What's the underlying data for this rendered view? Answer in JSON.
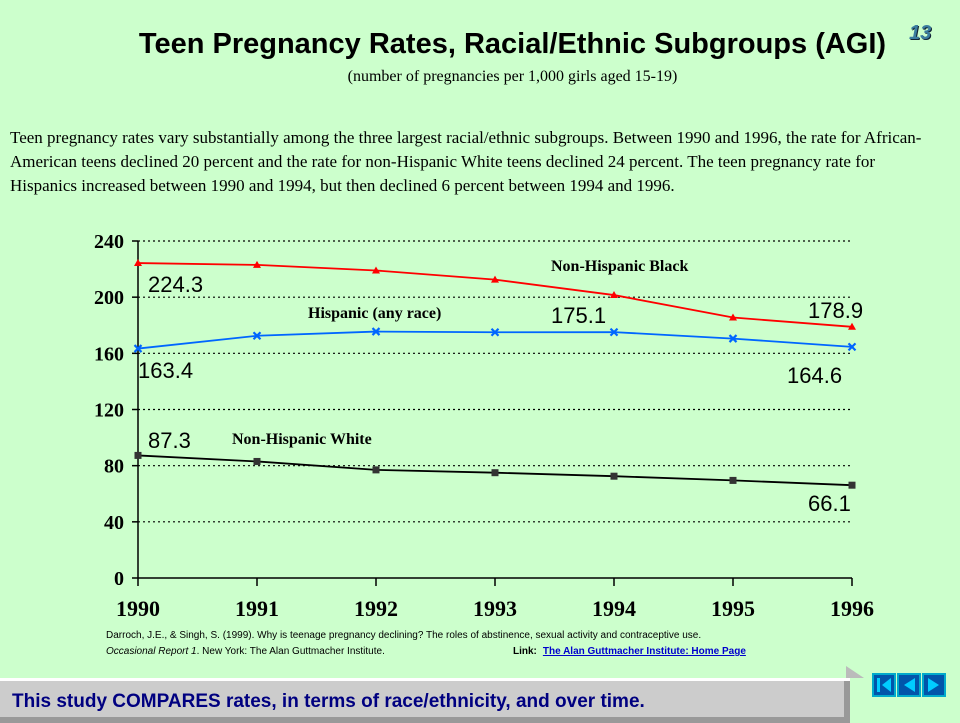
{
  "slide_number": "13",
  "title": "Teen Pregnancy Rates, Racial/Ethnic Subgroups (AGI)",
  "subtitle": "(number of pregnancies per 1,000 girls aged 15-19)",
  "paragraph": "Teen pregnancy rates vary substantially among the three largest racial/ethnic subgroups.  Between 1990 and 1996, the rate for African-American  teens declined 20 percent and the rate for non-Hispanic White teens declined 24 percent.  The teen pregnancy rate for Hispanics increased between 1990 and 1994, but then declined 6 percent between 1994 and 1996.",
  "reference": {
    "line1": "Darroch, J.E., & Singh, S. (1999). Why is teenage pregnancy declining? The roles of abstinence, sexual activity and contraceptive use.",
    "line2_italic": "Occasional Report 1",
    "line2_rest": ". New York: The Alan Guttmacher Institute."
  },
  "link": {
    "label": "Link:",
    "text": "The Alan Guttmacher  Institute:  Home Page"
  },
  "banner_text": "This study COMPARES rates, in terms of race/ethnicity, and  over time.",
  "nav_buttons": [
    "first-slide-icon",
    "previous-slide-icon",
    "next-slide-icon"
  ],
  "chart_data": {
    "type": "line",
    "x": [
      "1990",
      "1991",
      "1992",
      "1993",
      "1994",
      "1995",
      "1996"
    ],
    "ylim": [
      0,
      240
    ],
    "yticks": [
      "0",
      "40",
      "80",
      "120",
      "160",
      "200",
      "240"
    ],
    "grid": "dotted horizontal",
    "series": [
      {
        "name": "Non-Hispanic Black",
        "color": "#ff0000",
        "marker": "triangle",
        "values": [
          224.3,
          223,
          219,
          212.5,
          201.5,
          185.5,
          178.9
        ]
      },
      {
        "name": "Hispanic (any race)",
        "color": "#0066ff",
        "marker": "x",
        "values": [
          163.4,
          172.5,
          175.5,
          175,
          175.1,
          170.5,
          164.6
        ]
      },
      {
        "name": "Non-Hispanic White",
        "color": "#000000",
        "marker": "square",
        "values": [
          87.3,
          83,
          77,
          75,
          72.5,
          69.5,
          66.1
        ]
      }
    ],
    "data_labels": [
      {
        "text": "224.3",
        "series": 0,
        "index": 0
      },
      {
        "text": "178.9",
        "series": 0,
        "index": 6
      },
      {
        "text": "175.1",
        "series": 1,
        "index": 4
      },
      {
        "text": "163.4",
        "series": 1,
        "index": 0
      },
      {
        "text": "164.6",
        "series": 1,
        "index": 6
      },
      {
        "text": "87.3",
        "series": 2,
        "index": 0
      },
      {
        "text": "66.1",
        "series": 2,
        "index": 6
      }
    ]
  }
}
